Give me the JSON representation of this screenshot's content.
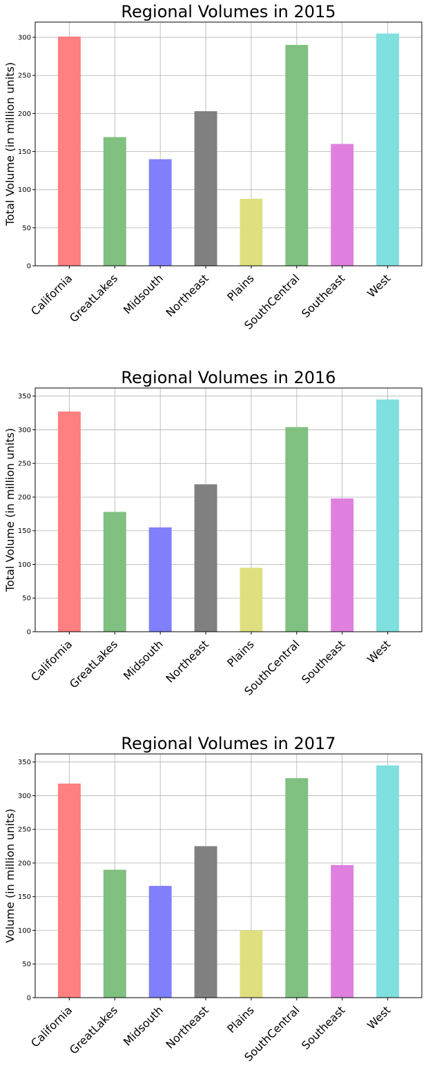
{
  "chart_data": [
    {
      "type": "bar",
      "title": "Regional Volumes in 2015",
      "xlabel": "",
      "ylabel": "Total Volume (in million units)",
      "ylim": [
        0,
        320
      ],
      "yticks": [
        0,
        50,
        100,
        150,
        200,
        250,
        300
      ],
      "grid": true,
      "categories": [
        "California",
        "GreatLakes",
        "Midsouth",
        "Northeast",
        "Plains",
        "SouthCentral",
        "Southeast",
        "West"
      ],
      "values": [
        301,
        169,
        140,
        203,
        88,
        290,
        160,
        305
      ],
      "colors": [
        "#ff8080",
        "#80c080",
        "#8080ff",
        "#808080",
        "#dfdf80",
        "#80c080",
        "#df80df",
        "#80dfdf"
      ]
    },
    {
      "type": "bar",
      "title": "Regional Volumes in 2016",
      "xlabel": "",
      "ylabel": "Total Volume (in million units)",
      "ylim": [
        0,
        362
      ],
      "yticks": [
        0,
        50,
        100,
        150,
        200,
        250,
        300,
        350
      ],
      "grid": true,
      "categories": [
        "California",
        "GreatLakes",
        "Midsouth",
        "Northeast",
        "Plains",
        "SouthCentral",
        "Southeast",
        "West"
      ],
      "values": [
        327,
        178,
        155,
        219,
        95,
        304,
        198,
        345
      ],
      "colors": [
        "#ff8080",
        "#80c080",
        "#8080ff",
        "#808080",
        "#dfdf80",
        "#80c080",
        "#df80df",
        "#80dfdf"
      ]
    },
    {
      "type": "bar",
      "title": "Regional Volumes in 2017",
      "xlabel": "",
      "ylabel": "Volume (in million units)",
      "ylim": [
        0,
        362
      ],
      "yticks": [
        0,
        50,
        100,
        150,
        200,
        250,
        300,
        350
      ],
      "grid": true,
      "categories": [
        "California",
        "GreatLakes",
        "Midsouth",
        "Northeast",
        "Plains",
        "SouthCentral",
        "Southeast",
        "West"
      ],
      "values": [
        318,
        190,
        166,
        225,
        100,
        326,
        197,
        345
      ],
      "colors": [
        "#ff8080",
        "#80c080",
        "#8080ff",
        "#808080",
        "#dfdf80",
        "#80c080",
        "#df80df",
        "#80dfdf"
      ]
    }
  ]
}
